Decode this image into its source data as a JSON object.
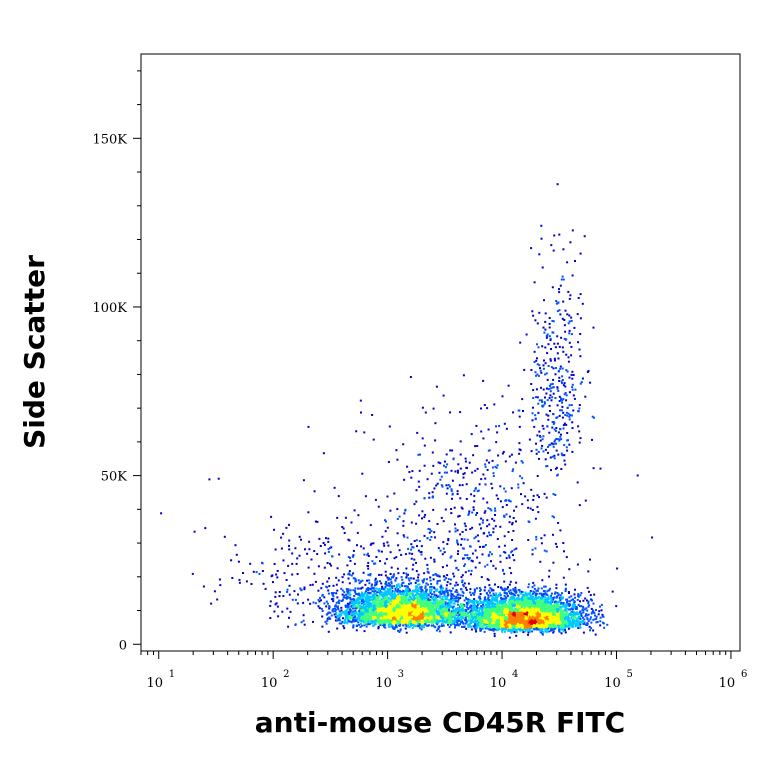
{
  "chart_data": {
    "type": "scatter",
    "xlabel": "anti-mouse CD45R FITC",
    "ylabel": "Side Scatter",
    "x_scale": "log",
    "xlim": [
      7,
      1200000
    ],
    "ylim": [
      -2000,
      175000
    ],
    "x_ticks": [
      {
        "value": 10,
        "base": "10",
        "exp": "1"
      },
      {
        "value": 100,
        "base": "10",
        "exp": "2"
      },
      {
        "value": 1000,
        "base": "10",
        "exp": "3"
      },
      {
        "value": 10000,
        "base": "10",
        "exp": "4"
      },
      {
        "value": 100000,
        "base": "10",
        "exp": "5"
      },
      {
        "value": 1000000,
        "base": "10",
        "exp": "6"
      }
    ],
    "y_ticks": [
      {
        "value": 0,
        "label": "0"
      },
      {
        "value": 50000,
        "label": "50K"
      },
      {
        "value": 100000,
        "label": "100K"
      },
      {
        "value": 150000,
        "label": "150K"
      }
    ],
    "populations": [
      {
        "x_center": 1400,
        "y_center": 8000,
        "x_spread_decades": 0.28,
        "y_sd": 4500,
        "relative_size": 0.42
      },
      {
        "x_center": 16000,
        "y_center": 6500,
        "x_spread_decades": 0.24,
        "y_sd": 4000,
        "relative_size": 0.45
      },
      {
        "x_center": 5000,
        "y_center": 30000,
        "x_spread_decades": 0.45,
        "y_sd": 20000,
        "relative_size": 0.06
      },
      {
        "x_center": 30000,
        "y_center": 65000,
        "x_spread_decades": 0.12,
        "y_sd": 25000,
        "relative_size": 0.04
      },
      {
        "x_center": 300,
        "y_center": 15000,
        "x_spread_decades": 0.5,
        "y_sd": 12000,
        "relative_size": 0.03
      }
    ],
    "colormap": [
      "#0000c8",
      "#0050ff",
      "#00c8ff",
      "#40ff80",
      "#ffff00",
      "#ff8000",
      "#e00000"
    ],
    "grid": false,
    "legend": "none"
  }
}
